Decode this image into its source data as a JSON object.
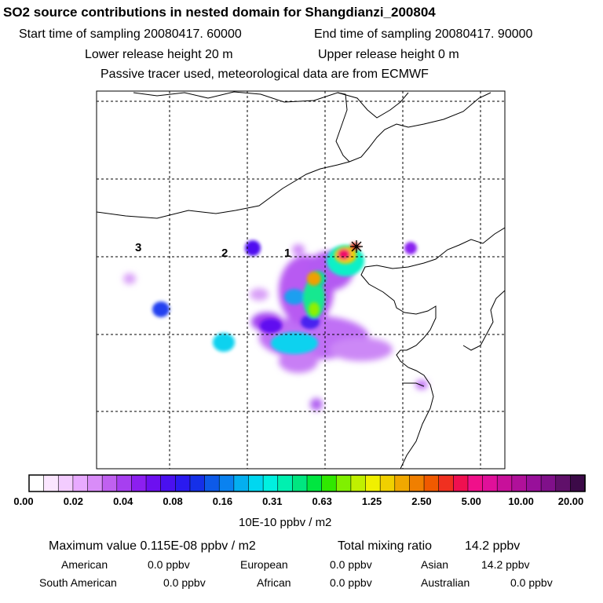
{
  "header": {
    "title": "SO2 source contributions in nested domain for Shangdianzi_200804",
    "start_time": "Start time of sampling 20080417. 60000",
    "end_time": "End time of sampling 20080417. 90000",
    "lower_release": "Lower release height   20 m",
    "upper_release": "Upper release height    0 m",
    "tracer_note": "Passive tracer used, meteorological data are from ECMWF"
  },
  "map": {
    "rings": [
      "1",
      "2",
      "3"
    ],
    "receptor_marker": "station-star-icon"
  },
  "colorbar": {
    "ticks": [
      "0.00",
      "0.02",
      "0.04",
      "0.08",
      "0.16",
      "0.31",
      "0.63",
      "1.25",
      "2.50",
      "5.00",
      "10.00",
      "20.00"
    ],
    "colors": [
      "#ffffff",
      "#fbe6ff",
      "#f3ccff",
      "#e8aaff",
      "#d98cf8",
      "#c061f0",
      "#a73ff0",
      "#8c1ff0",
      "#6d10f0",
      "#4a10f0",
      "#2a1af0",
      "#1530e8",
      "#0d5ae8",
      "#0a82f0",
      "#04aff0",
      "#00d7f0",
      "#00f0e0",
      "#00f0b0",
      "#00e680",
      "#00e640",
      "#30e800",
      "#80f000",
      "#c0f000",
      "#f0f000",
      "#f0d000",
      "#f0a800",
      "#f07f00",
      "#f05a00",
      "#f03020",
      "#f01050",
      "#f0108a",
      "#e0109a",
      "#c8109a",
      "#b0109a",
      "#98109a",
      "#80108a",
      "#60106a",
      "#3c0a48"
    ],
    "units": "10E-10 ppbv / m2"
  },
  "stats": {
    "max_label": "Maximum value  0.115E-08 ppbv / m2",
    "total_label": "Total mixing ratio",
    "total_value": "14.2 ppbv",
    "regions": [
      {
        "name": "American",
        "value": "0.0 ppbv"
      },
      {
        "name": "European",
        "value": "0.0 ppbv"
      },
      {
        "name": "Asian",
        "value": "14.2 ppbv"
      },
      {
        "name": "South American",
        "value": "0.0 ppbv"
      },
      {
        "name": "African",
        "value": "0.0 ppbv"
      },
      {
        "name": "Australian",
        "value": "0.0 ppbv"
      }
    ]
  }
}
